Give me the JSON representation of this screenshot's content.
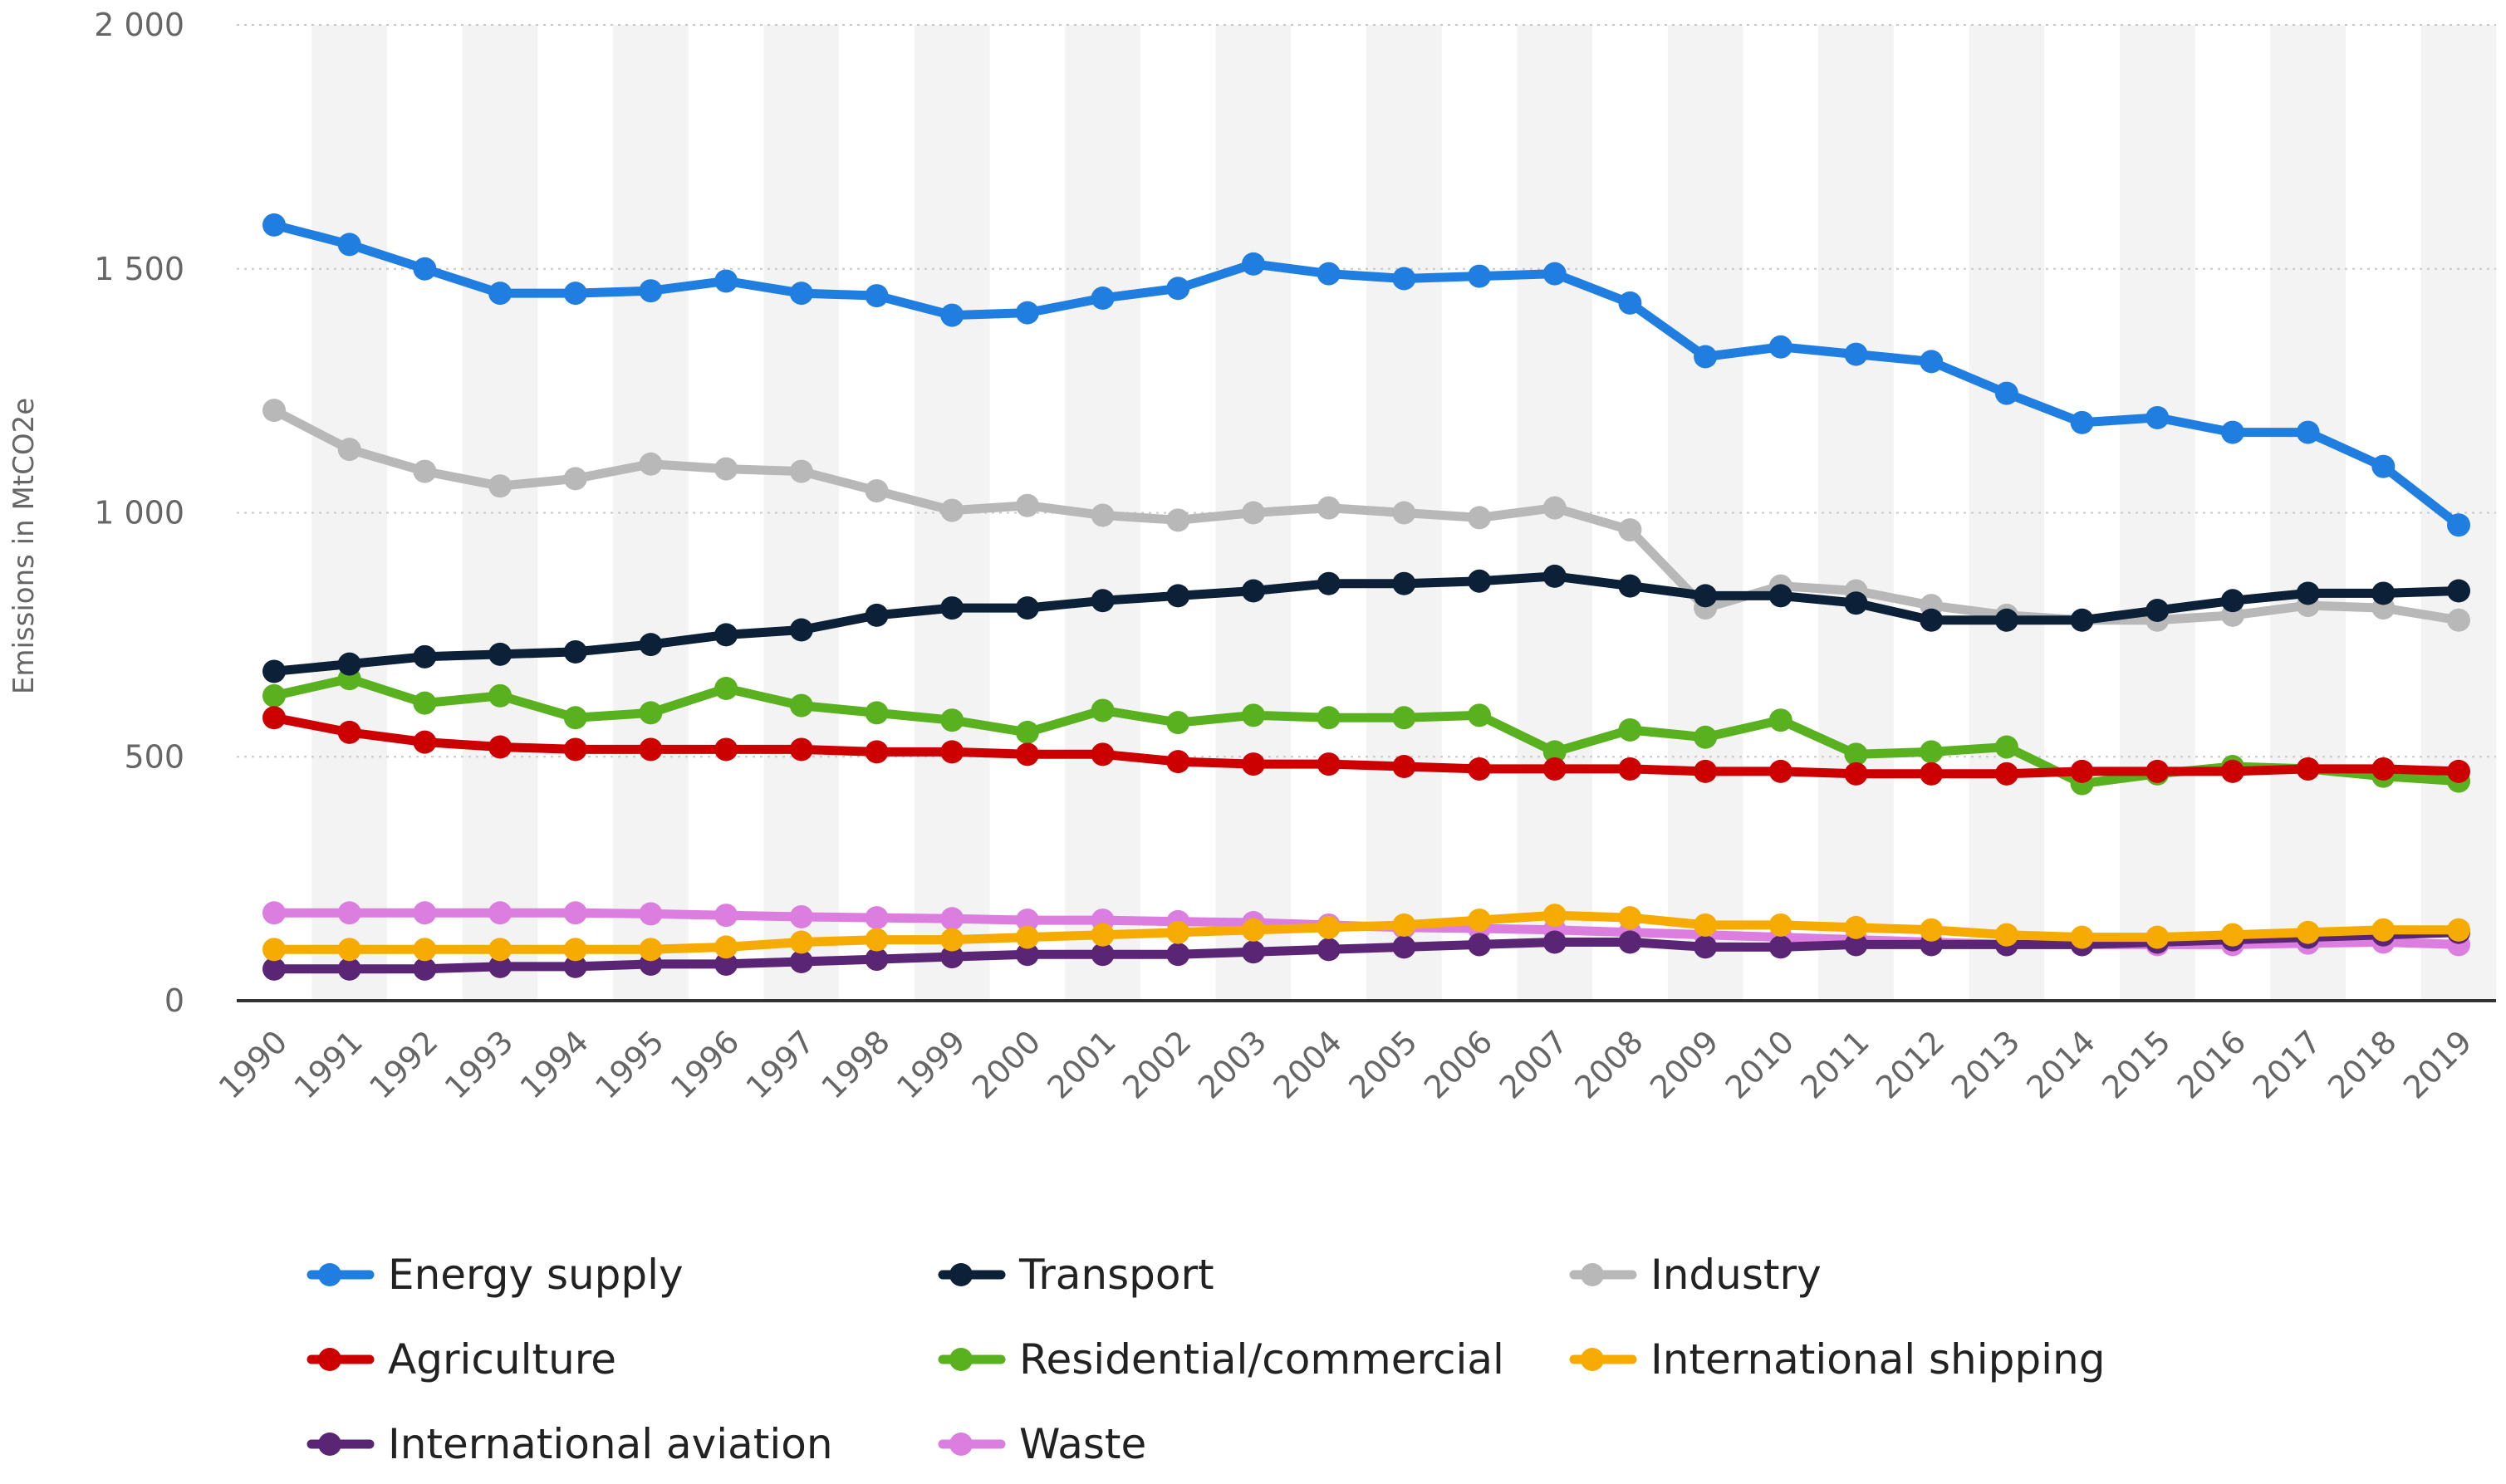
{
  "chart_data": {
    "type": "line",
    "ylabel": "Emissions in MtCO2e",
    "xlabel": "",
    "ylim": [
      0,
      2000
    ],
    "yticks": [
      0,
      500,
      1000,
      1500,
      2000
    ],
    "ytick_labels": [
      "0",
      "500",
      "1 000",
      "1 500",
      "2 000"
    ],
    "grid": true,
    "legend_position": "bottom",
    "x": [
      "1990",
      "1991",
      "1992",
      "1993",
      "1994",
      "1995",
      "1996",
      "1997",
      "1998",
      "1999",
      "2000",
      "2001",
      "2002",
      "2003",
      "2004",
      "2005",
      "2006",
      "2007",
      "2008",
      "2009",
      "2010",
      "2011",
      "2012",
      "2013",
      "2014",
      "2015",
      "2016",
      "2017",
      "2018",
      "2019"
    ],
    "series": [
      {
        "name": "Energy supply",
        "color": "#1f7ee0",
        "values": [
          1590,
          1550,
          1500,
          1450,
          1450,
          1455,
          1475,
          1450,
          1445,
          1405,
          1410,
          1440,
          1460,
          1510,
          1490,
          1480,
          1485,
          1490,
          1430,
          1320,
          1340,
          1325,
          1310,
          1245,
          1185,
          1195,
          1165,
          1165,
          1095,
          975
        ]
      },
      {
        "name": "Transport",
        "color": "#0c2038",
        "values": [
          675,
          690,
          705,
          710,
          715,
          730,
          750,
          760,
          790,
          805,
          805,
          820,
          830,
          840,
          855,
          855,
          860,
          870,
          850,
          830,
          830,
          815,
          780,
          780,
          780,
          800,
          820,
          835,
          835,
          840
        ]
      },
      {
        "name": "Industry",
        "color": "#b8b8b8",
        "values": [
          1210,
          1130,
          1085,
          1055,
          1070,
          1100,
          1090,
          1085,
          1045,
          1005,
          1015,
          995,
          985,
          1000,
          1010,
          1000,
          990,
          1010,
          965,
          805,
          850,
          840,
          810,
          790,
          780,
          780,
          790,
          810,
          805,
          780
        ]
      },
      {
        "name": "Agriculture",
        "color": "#cc0000",
        "values": [
          580,
          550,
          530,
          520,
          515,
          515,
          515,
          515,
          510,
          510,
          505,
          505,
          490,
          485,
          485,
          480,
          475,
          475,
          475,
          470,
          470,
          465,
          465,
          465,
          470,
          470,
          470,
          475,
          475,
          470
        ]
      },
      {
        "name": "Residential/commercial",
        "color": "#5ab11f",
        "values": [
          625,
          660,
          610,
          625,
          580,
          590,
          640,
          605,
          590,
          575,
          550,
          595,
          570,
          585,
          580,
          580,
          585,
          510,
          555,
          540,
          575,
          505,
          510,
          520,
          445,
          465,
          480,
          475,
          460,
          450
        ]
      },
      {
        "name": "International shipping",
        "color": "#f6ab02",
        "values": [
          105,
          105,
          105,
          105,
          105,
          105,
          110,
          120,
          125,
          125,
          130,
          135,
          140,
          145,
          150,
          155,
          165,
          175,
          170,
          155,
          155,
          150,
          145,
          135,
          130,
          130,
          135,
          140,
          145,
          145
        ]
      },
      {
        "name": "International aviation",
        "color": "#5b2575",
        "values": [
          65,
          65,
          65,
          70,
          70,
          75,
          75,
          80,
          85,
          90,
          95,
          95,
          95,
          100,
          105,
          110,
          115,
          120,
          120,
          110,
          110,
          115,
          115,
          115,
          115,
          120,
          125,
          130,
          135,
          140
        ]
      },
      {
        "name": "Waste",
        "color": "#dc7de0",
        "values": [
          180,
          180,
          180,
          180,
          180,
          178,
          175,
          172,
          170,
          168,
          165,
          165,
          162,
          160,
          155,
          150,
          148,
          145,
          140,
          135,
          130,
          125,
          120,
          115,
          115,
          115,
          115,
          118,
          120,
          115
        ]
      }
    ]
  }
}
